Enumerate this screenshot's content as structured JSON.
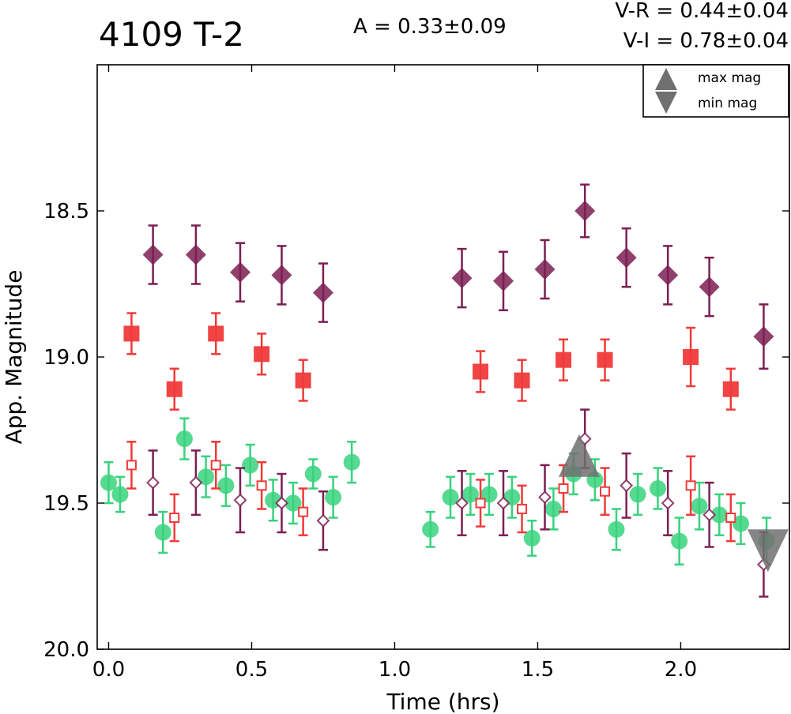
{
  "chart_data": {
    "type": "scatter",
    "title": "4109 T-2",
    "annotations": {
      "amplitude": "A  = 0.33±0.09",
      "v_minus_r": "V-R = 0.44±0.04",
      "v_minus_i": "V-I  = 0.78±0.04"
    },
    "xlabel": "Time (hrs)",
    "ylabel": "App. Magnitude",
    "xlim": [
      -0.04,
      2.38
    ],
    "ylim": [
      20.0,
      18.0
    ],
    "y_inverted": true,
    "xticks": [
      0.0,
      0.5,
      1.0,
      1.5,
      2.0
    ],
    "xtick_labels": [
      "0.0",
      "0.5",
      "1.0",
      "1.5",
      "2.0"
    ],
    "yticks": [
      18.5,
      19.0,
      19.5,
      20.0
    ],
    "ytick_labels": [
      "18.5",
      "19.0",
      "19.5",
      "20.0"
    ],
    "grid": false,
    "legend": {
      "placement": "top-right",
      "entries": [
        {
          "label": "max mag",
          "marker": "triangle-up",
          "color": "#707070"
        },
        {
          "label": "min mag",
          "marker": "triangle-down",
          "color": "#707070"
        }
      ]
    },
    "series": [
      {
        "marker": "diamond-filled",
        "color": "#7b1f52",
        "points": [
          {
            "x": 0.155,
            "y": 18.65,
            "err": 0.1
          },
          {
            "x": 0.305,
            "y": 18.65,
            "err": 0.1
          },
          {
            "x": 0.46,
            "y": 18.71,
            "err": 0.1
          },
          {
            "x": 0.605,
            "y": 18.72,
            "err": 0.1
          },
          {
            "x": 0.75,
            "y": 18.78,
            "err": 0.1
          },
          {
            "x": 1.235,
            "y": 18.73,
            "err": 0.1
          },
          {
            "x": 1.38,
            "y": 18.74,
            "err": 0.1
          },
          {
            "x": 1.525,
            "y": 18.7,
            "err": 0.1
          },
          {
            "x": 1.665,
            "y": 18.5,
            "err": 0.09
          },
          {
            "x": 1.81,
            "y": 18.66,
            "err": 0.1
          },
          {
            "x": 1.955,
            "y": 18.72,
            "err": 0.1
          },
          {
            "x": 2.1,
            "y": 18.76,
            "err": 0.1
          },
          {
            "x": 2.29,
            "y": 18.93,
            "err": 0.11
          }
        ]
      },
      {
        "marker": "square-filled",
        "color": "#f03a3a",
        "points": [
          {
            "x": 0.08,
            "y": 18.92,
            "err": 0.07
          },
          {
            "x": 0.23,
            "y": 19.11,
            "err": 0.07
          },
          {
            "x": 0.375,
            "y": 18.92,
            "err": 0.07
          },
          {
            "x": 0.535,
            "y": 18.99,
            "err": 0.07
          },
          {
            "x": 0.68,
            "y": 19.08,
            "err": 0.07
          },
          {
            "x": 1.3,
            "y": 19.05,
            "err": 0.07
          },
          {
            "x": 1.445,
            "y": 19.08,
            "err": 0.07
          },
          {
            "x": 1.59,
            "y": 19.01,
            "err": 0.07
          },
          {
            "x": 1.735,
            "y": 19.01,
            "err": 0.07
          },
          {
            "x": 2.035,
            "y": 19.0,
            "err": 0.1
          },
          {
            "x": 2.175,
            "y": 19.11,
            "err": 0.07
          }
        ]
      },
      {
        "marker": "circle-filled",
        "color": "#38d27e",
        "points": [
          {
            "x": 0.0,
            "y": 19.43,
            "err": 0.07
          },
          {
            "x": 0.04,
            "y": 19.47,
            "err": 0.06
          },
          {
            "x": 0.19,
            "y": 19.6,
            "err": 0.07
          },
          {
            "x": 0.265,
            "y": 19.28,
            "err": 0.07
          },
          {
            "x": 0.34,
            "y": 19.41,
            "err": 0.07
          },
          {
            "x": 0.41,
            "y": 19.44,
            "err": 0.07
          },
          {
            "x": 0.495,
            "y": 19.37,
            "err": 0.07
          },
          {
            "x": 0.575,
            "y": 19.49,
            "err": 0.07
          },
          {
            "x": 0.645,
            "y": 19.5,
            "err": 0.07
          },
          {
            "x": 0.715,
            "y": 19.4,
            "err": 0.05
          },
          {
            "x": 0.785,
            "y": 19.48,
            "err": 0.07
          },
          {
            "x": 0.85,
            "y": 19.36,
            "err": 0.07
          },
          {
            "x": 1.125,
            "y": 19.59,
            "err": 0.06
          },
          {
            "x": 1.195,
            "y": 19.48,
            "err": 0.07
          },
          {
            "x": 1.265,
            "y": 19.47,
            "err": 0.07
          },
          {
            "x": 1.33,
            "y": 19.47,
            "err": 0.07
          },
          {
            "x": 1.41,
            "y": 19.48,
            "err": 0.07
          },
          {
            "x": 1.48,
            "y": 19.62,
            "err": 0.06
          },
          {
            "x": 1.555,
            "y": 19.52,
            "err": 0.07
          },
          {
            "x": 1.625,
            "y": 19.4,
            "err": 0.07
          },
          {
            "x": 1.7,
            "y": 19.42,
            "err": 0.07
          },
          {
            "x": 1.775,
            "y": 19.59,
            "err": 0.07
          },
          {
            "x": 1.85,
            "y": 19.47,
            "err": 0.07
          },
          {
            "x": 1.92,
            "y": 19.45,
            "err": 0.07
          },
          {
            "x": 1.995,
            "y": 19.63,
            "err": 0.08
          },
          {
            "x": 2.065,
            "y": 19.51,
            "err": 0.08
          },
          {
            "x": 2.135,
            "y": 19.54,
            "err": 0.07
          },
          {
            "x": 2.21,
            "y": 19.57,
            "err": 0.07
          },
          {
            "x": 2.3,
            "y": 19.63,
            "err": 0.08
          }
        ]
      },
      {
        "marker": "square-open",
        "color": "#f03a3a",
        "points": [
          {
            "x": 0.08,
            "y": 19.37,
            "err": 0.08
          },
          {
            "x": 0.23,
            "y": 19.55,
            "err": 0.08
          },
          {
            "x": 0.375,
            "y": 19.37,
            "err": 0.08
          },
          {
            "x": 0.535,
            "y": 19.44,
            "err": 0.08
          },
          {
            "x": 0.68,
            "y": 19.53,
            "err": 0.08
          },
          {
            "x": 1.3,
            "y": 19.5,
            "err": 0.08
          },
          {
            "x": 1.445,
            "y": 19.52,
            "err": 0.08
          },
          {
            "x": 1.59,
            "y": 19.45,
            "err": 0.08
          },
          {
            "x": 1.735,
            "y": 19.46,
            "err": 0.08
          },
          {
            "x": 2.035,
            "y": 19.44,
            "err": 0.1
          },
          {
            "x": 2.175,
            "y": 19.55,
            "err": 0.08
          }
        ]
      },
      {
        "marker": "diamond-open",
        "color": "#7b1f52",
        "points": [
          {
            "x": 0.155,
            "y": 19.43,
            "err": 0.11
          },
          {
            "x": 0.305,
            "y": 19.43,
            "err": 0.11
          },
          {
            "x": 0.46,
            "y": 19.49,
            "err": 0.11
          },
          {
            "x": 0.605,
            "y": 19.5,
            "err": 0.1
          },
          {
            "x": 0.75,
            "y": 19.56,
            "err": 0.1
          },
          {
            "x": 1.235,
            "y": 19.5,
            "err": 0.11
          },
          {
            "x": 1.38,
            "y": 19.5,
            "err": 0.11
          },
          {
            "x": 1.525,
            "y": 19.48,
            "err": 0.11
          },
          {
            "x": 1.665,
            "y": 19.28,
            "err": 0.1
          },
          {
            "x": 1.81,
            "y": 19.44,
            "err": 0.11
          },
          {
            "x": 1.955,
            "y": 19.5,
            "err": 0.11
          },
          {
            "x": 2.1,
            "y": 19.54,
            "err": 0.11
          },
          {
            "x": 2.29,
            "y": 19.71,
            "err": 0.11
          }
        ]
      }
    ],
    "max_mag_marker": {
      "x": 1.645,
      "y": 19.34,
      "color": "#707070"
    },
    "min_mag_marker": {
      "x": 2.305,
      "y": 19.66,
      "color": "#707070"
    }
  }
}
